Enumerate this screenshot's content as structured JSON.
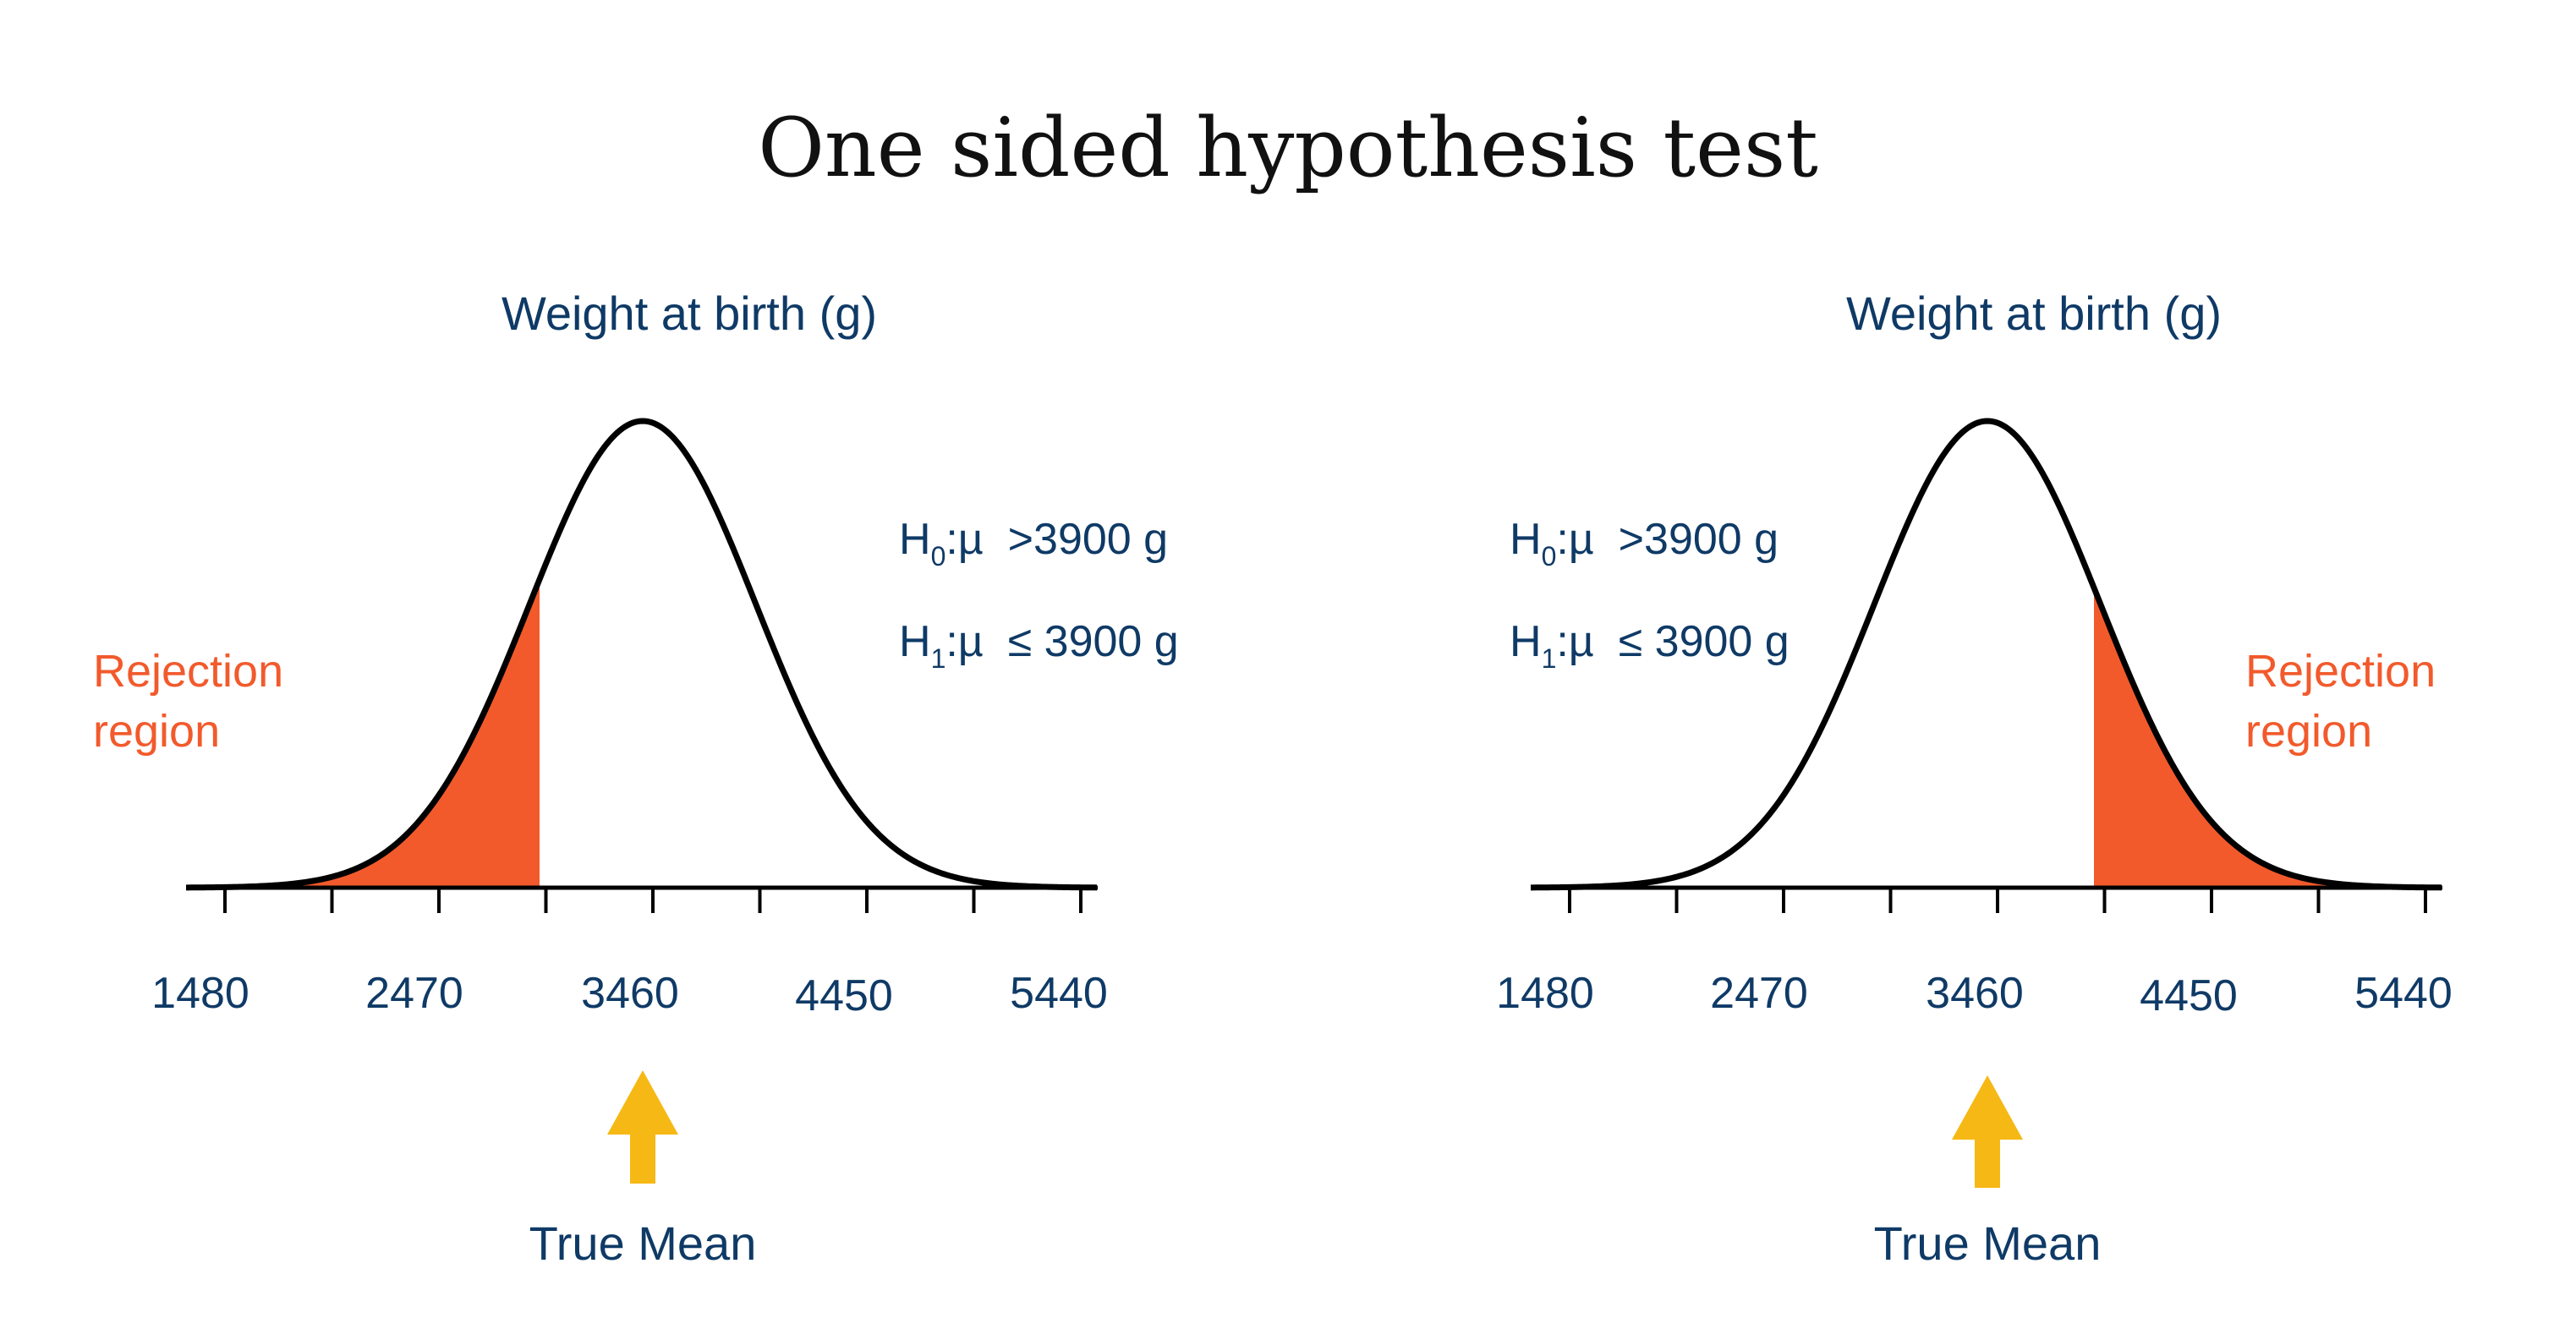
{
  "title": "One sided hypothesis test",
  "colors": {
    "text": "#0f3a66",
    "rejection": "#f25a2c",
    "arrow": "#f6b814",
    "curve": "#000000"
  },
  "tick_labels": [
    "1480",
    "2470",
    "3460",
    "4450",
    "5440"
  ],
  "panels": [
    {
      "heading": "Weight at birth (g)",
      "rejection_side": "left",
      "rejection_label": [
        "Rejection",
        "region"
      ],
      "hypotheses": [
        {
          "symbol": "H",
          "sub": "0",
          "rest": ":µ  >3900 g"
        },
        {
          "symbol": "H",
          "sub": "1",
          "rest": ":µ  ≤ 3900 g"
        }
      ],
      "arrow_icon": "arrow-up-icon",
      "arrow_label": "True Mean"
    },
    {
      "heading": "Weight at birth (g)",
      "rejection_side": "right",
      "rejection_label": [
        "Rejection",
        "region"
      ],
      "hypotheses": [
        {
          "symbol": "H",
          "sub": "0",
          "rest": ":µ  >3900 g"
        },
        {
          "symbol": "H",
          "sub": "1",
          "rest": ":µ  ≤ 3900 g"
        }
      ],
      "arrow_icon": "arrow-up-icon",
      "arrow_label": "True Mean"
    }
  ]
}
